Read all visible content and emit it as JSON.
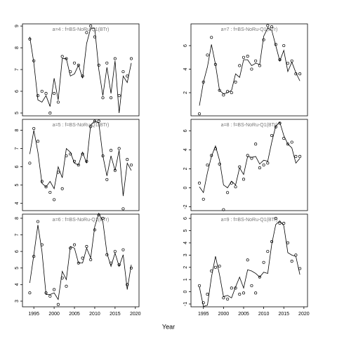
{
  "x_label": "Year",
  "chart_data": [
    {
      "type": "line",
      "title": "a=4  :  f=BS-NoRu-Q1(BTr)",
      "x": [
        1994,
        1995,
        1996,
        1997,
        1998,
        1999,
        2000,
        2001,
        2002,
        2003,
        2004,
        2005,
        2006,
        2007,
        2008,
        2009,
        2010,
        2011,
        2012,
        2013,
        2014,
        2015,
        2016,
        2017,
        2018,
        2019
      ],
      "series": [
        {
          "style": "points",
          "color": "#000000",
          "values": [
            8.4,
            7.4,
            5.8,
            6.0,
            5.9,
            5.0,
            5.9,
            5.5,
            7.6,
            7.5,
            6.9,
            7.3,
            7.2,
            6.7,
            8.7,
            9.0,
            8.5,
            7.2,
            5.7,
            7.3,
            5.7,
            7.5,
            5.8,
            6.9,
            6.7,
            7.5
          ]
        },
        {
          "style": "line",
          "color": "#000000",
          "values": [
            8.5,
            7.3,
            5.6,
            5.5,
            5.8,
            5.3,
            6.6,
            5.6,
            7.5,
            7.5,
            6.7,
            6.8,
            7.2,
            6.6,
            8.2,
            8.9,
            8.9,
            7.0,
            5.8,
            7.1,
            5.9,
            7.4,
            5.0,
            6.7,
            6.4,
            7.3
          ]
        }
      ],
      "xlim": [
        1992.2,
        2020.9
      ],
      "ylim": [
        4.87,
        9.1
      ],
      "yticks": [
        5,
        6,
        7,
        8,
        9
      ]
    },
    {
      "type": "line",
      "title": "a=7  :  f=BS-NoRu-Q1(BTr)",
      "x": [
        1994,
        1995,
        1996,
        1997,
        1998,
        1999,
        2000,
        2001,
        2002,
        2003,
        2004,
        2005,
        2006,
        2007,
        2008,
        2009,
        2010,
        2011,
        2012,
        2013,
        2014,
        2015,
        2016,
        2017,
        2018,
        2019
      ],
      "series": [
        {
          "style": "points",
          "color": "#000000",
          "values": [
            0.2,
            2.9,
            5.2,
            6.7,
            4.4,
            2.2,
            1.8,
            2.1,
            2.0,
            2.9,
            4.3,
            5.0,
            5.1,
            4.0,
            4.7,
            4.3,
            6.5,
            7.7,
            7.6,
            6.1,
            4.8,
            6.0,
            4.5,
            4.7,
            3.6,
            3.6
          ]
        },
        {
          "style": "line",
          "color": "#000000",
          "values": [
            0.9,
            2.9,
            4.2,
            6.1,
            4.4,
            2.2,
            1.9,
            2.0,
            2.2,
            3.6,
            3.3,
            4.8,
            4.8,
            4.3,
            4.5,
            4.4,
            6.8,
            7.5,
            7.3,
            6.0,
            4.7,
            5.6,
            3.8,
            4.6,
            3.7,
            3.0
          ]
        }
      ],
      "xlim": [
        1991.9,
        2020.9
      ],
      "ylim": [
        0.03,
        7.85
      ],
      "yticks": [
        2,
        4,
        6
      ]
    },
    {
      "type": "line",
      "title": "a=5  :  f=BS-NoRu-Q1(BTr)",
      "x": [
        1994,
        1995,
        1996,
        1997,
        1998,
        1999,
        2000,
        2001,
        2002,
        2003,
        2004,
        2005,
        2006,
        2007,
        2008,
        2009,
        2010,
        2011,
        2012,
        2013,
        2014,
        2015,
        2016,
        2017,
        2018,
        2019
      ],
      "series": [
        {
          "style": "points",
          "color": "#000000",
          "values": [
            6.2,
            8.1,
            7.4,
            5.2,
            4.9,
            4.6,
            4.2,
            5.7,
            4.8,
            6.6,
            6.7,
            6.3,
            6.1,
            6.7,
            6.3,
            8.2,
            8.5,
            8.5,
            6.6,
            5.3,
            6.9,
            5.8,
            7.0,
            3.7,
            6.4,
            6.1
          ]
        },
        {
          "style": "line",
          "color": "#000000",
          "values": [
            6.7,
            8.0,
            6.8,
            5.1,
            4.9,
            5.2,
            4.8,
            6.0,
            5.4,
            7.0,
            6.8,
            6.2,
            6.1,
            6.8,
            6.2,
            8.3,
            8.5,
            8.4,
            6.6,
            5.5,
            6.6,
            5.8,
            6.9,
            4.4,
            6.2,
            5.8
          ]
        }
      ],
      "xlim": [
        1992.2,
        2020.9
      ],
      "ylim": [
        3.6,
        8.6
      ],
      "yticks": [
        4,
        5,
        6,
        7,
        8
      ]
    },
    {
      "type": "line",
      "title": "a=8  :  f=BS-NoRu-Q1(BTr)",
      "x": [
        1994,
        1995,
        1996,
        1997,
        1998,
        1999,
        2000,
        2001,
        2002,
        2003,
        2004,
        2005,
        2006,
        2007,
        2008,
        2009,
        2010,
        2011,
        2012,
        2013,
        2014,
        2015,
        2016,
        2017,
        2018,
        2019
      ],
      "series": [
        {
          "style": "points",
          "color": "#000000",
          "values": [
            0.5,
            -1.2,
            2.4,
            3.4,
            4.1,
            2.5,
            -2.3,
            -0.5,
            0.5,
            0.1,
            2.2,
            0.9,
            3.4,
            3.1,
            4.6,
            2.1,
            2.4,
            2.6,
            5.5,
            6.4,
            6.8,
            5.2,
            4.6,
            4.8,
            3.3,
            3.3
          ]
        },
        {
          "style": "line",
          "color": "#000000",
          "values": [
            0.1,
            -0.5,
            1.6,
            3.3,
            4.4,
            2.9,
            0.3,
            0.0,
            0.7,
            0.3,
            2.1,
            1.4,
            3.3,
            3.2,
            3.3,
            2.5,
            2.9,
            2.8,
            4.8,
            6.5,
            6.9,
            5.5,
            4.6,
            4.2,
            2.6,
            3.1
          ]
        }
      ],
      "xlim": [
        1991.9,
        2020.9
      ],
      "ylim": [
        -2.4,
        7.2
      ],
      "yticks": [
        -2,
        0,
        2,
        4,
        6
      ]
    },
    {
      "type": "line",
      "title": "a=6  :  f=BS-NoRu-Q1(BTr)",
      "x": [
        1994,
        1995,
        1996,
        1997,
        1998,
        1999,
        2000,
        2001,
        2002,
        2003,
        2004,
        2005,
        2006,
        2007,
        2008,
        2009,
        2010,
        2011,
        2012,
        2013,
        2014,
        2015,
        2016,
        2017,
        2018,
        2019
      ],
      "series": [
        {
          "style": "points",
          "color": "#000000",
          "values": [
            3.5,
            5.7,
            7.8,
            6.4,
            3.5,
            3.3,
            3.7,
            2.8,
            4.4,
            3.9,
            6.2,
            6.4,
            5.3,
            5.6,
            6.3,
            5.5,
            7.3,
            8.2,
            8.0,
            5.8,
            5.3,
            6.0,
            5.2,
            6.1,
            4.0,
            5.0
          ]
        },
        {
          "style": "line",
          "color": "#000000",
          "values": [
            4.1,
            5.8,
            7.6,
            6.0,
            3.4,
            3.4,
            3.5,
            3.1,
            4.8,
            4.3,
            6.3,
            6.2,
            5.3,
            5.3,
            6.2,
            5.6,
            7.5,
            8.3,
            7.8,
            5.9,
            5.1,
            5.9,
            5.1,
            5.8,
            3.7,
            5.2
          ]
        }
      ],
      "xlim": [
        1992.2,
        2020.9
      ],
      "ylim": [
        2.66,
        8.25
      ],
      "yticks": [
        3,
        4,
        5,
        6,
        7,
        8
      ],
      "xticks": [
        1995,
        2000,
        2005,
        2010,
        2015,
        2020
      ]
    },
    {
      "type": "line",
      "title": "a=9  :  f=BS-NoRu-Q1(BTr)",
      "x": [
        1994,
        1995,
        1996,
        1997,
        1998,
        1999,
        2000,
        2001,
        2002,
        2003,
        2004,
        2005,
        2006,
        2007,
        2008,
        2009,
        2010,
        2011,
        2012,
        2013,
        2014,
        2015,
        2016,
        2017,
        2018,
        2019
      ],
      "series": [
        {
          "style": "points",
          "color": "#000000",
          "values": [
            0.5,
            -0.9,
            -0.2,
            1.7,
            2.0,
            2.1,
            -0.5,
            -0.6,
            0.3,
            0.3,
            -0.2,
            -0.1,
            2.6,
            0.5,
            -0.1,
            1.2,
            2.4,
            3.3,
            4.1,
            6.0,
            5.6,
            5.6,
            4.0,
            2.5,
            3.0,
            1.9
          ]
        },
        {
          "style": "line",
          "color": "#000000",
          "values": [
            0.4,
            -1.2,
            -1.1,
            1.2,
            2.9,
            1.4,
            -0.4,
            -0.3,
            -0.5,
            0.4,
            1.2,
            0.3,
            1.8,
            1.7,
            1.5,
            1.2,
            1.6,
            1.5,
            3.9,
            5.5,
            5.8,
            5.4,
            3.2,
            3.0,
            2.9,
            1.4
          ]
        }
      ],
      "xlim": [
        1991.9,
        2020.9
      ],
      "ylim": [
        -1.23,
        6.35
      ],
      "yticks": [
        -1,
        0,
        1,
        2,
        3,
        4,
        5,
        6
      ],
      "xticks": [
        1995,
        2000,
        2005,
        2010,
        2015,
        2020
      ]
    }
  ]
}
